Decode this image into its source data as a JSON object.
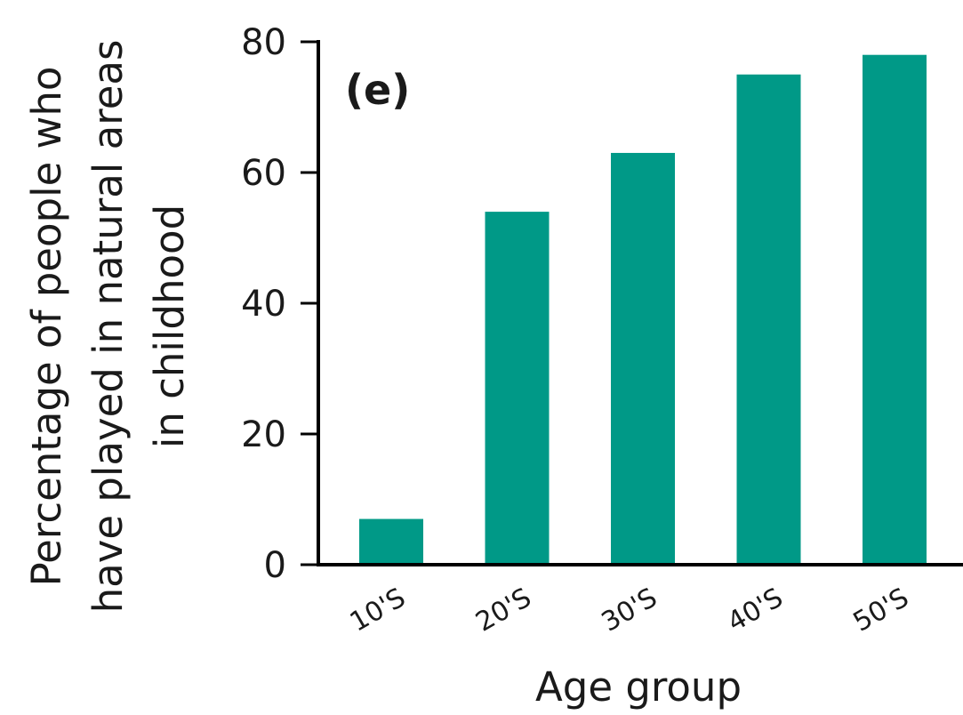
{
  "chart_data": {
    "type": "bar",
    "panel_label": "(e)",
    "categories": [
      "10'S",
      "20'S",
      "30'S",
      "40'S",
      "50'S"
    ],
    "values": [
      7,
      54,
      63,
      75,
      78
    ],
    "bar_color": "#009987",
    "xlabel": "Age group",
    "ylabel_lines": [
      "Percentage of people who",
      "have played in natural areas",
      "in childhood"
    ],
    "ylim": [
      0,
      80
    ],
    "yticks": [
      0,
      20,
      40,
      60,
      80
    ],
    "grid": false
  }
}
